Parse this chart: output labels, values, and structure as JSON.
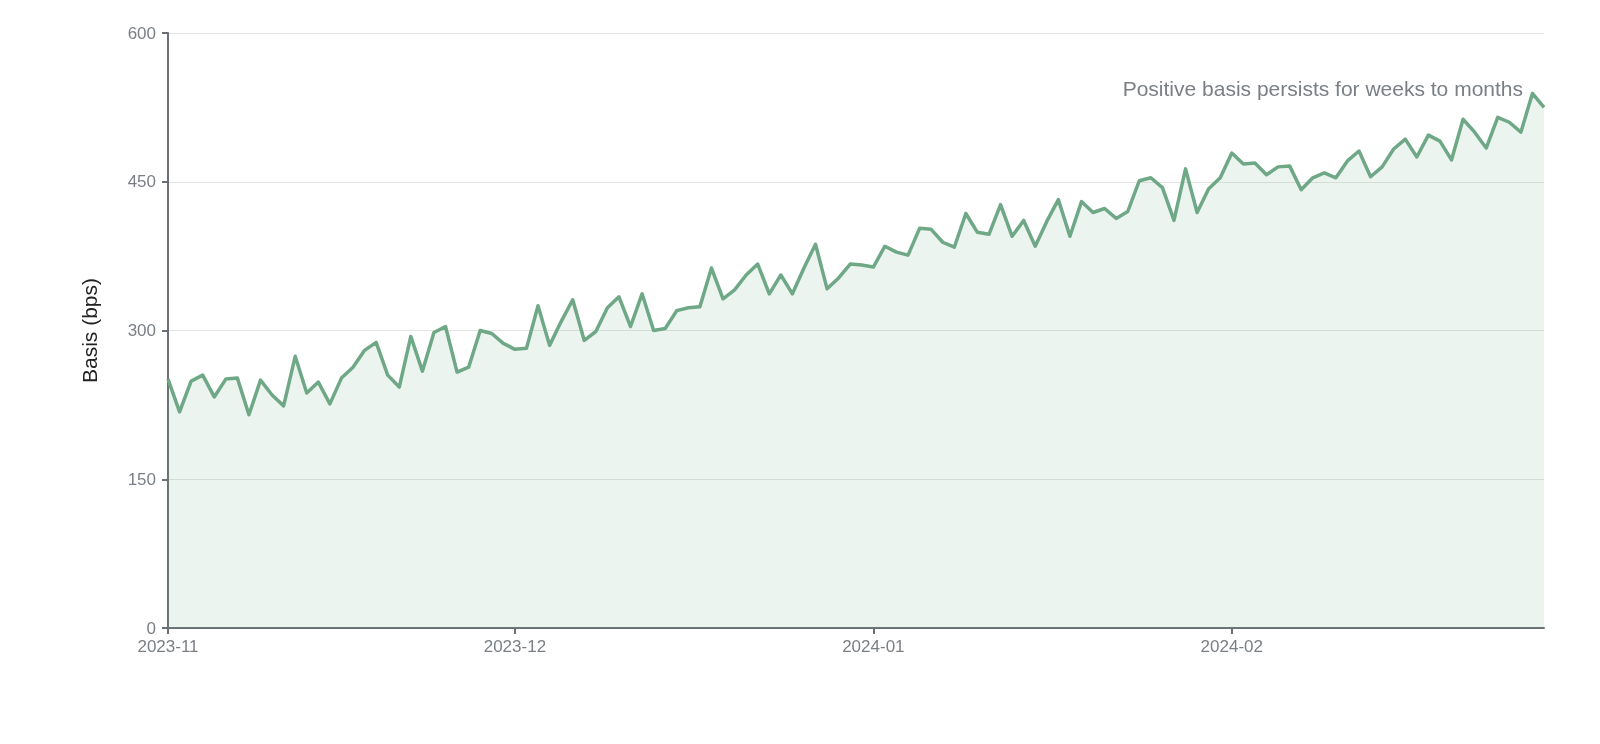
{
  "chart_data": {
    "type": "area",
    "ylabel": "Basis (bps)",
    "annotations": [
      "Positive basis persists for weeks to months"
    ],
    "x": [
      "2023-11-01",
      "2023-11-02",
      "2023-11-03",
      "2023-11-04",
      "2023-11-05",
      "2023-11-06",
      "2023-11-07",
      "2023-11-08",
      "2023-11-09",
      "2023-11-10",
      "2023-11-11",
      "2023-11-12",
      "2023-11-13",
      "2023-11-14",
      "2023-11-15",
      "2023-11-16",
      "2023-11-17",
      "2023-11-18",
      "2023-11-19",
      "2023-11-20",
      "2023-11-21",
      "2023-11-22",
      "2023-11-23",
      "2023-11-24",
      "2023-11-25",
      "2023-11-26",
      "2023-11-27",
      "2023-11-28",
      "2023-11-29",
      "2023-11-30",
      "2023-12-01",
      "2023-12-02",
      "2023-12-03",
      "2023-12-04",
      "2023-12-05",
      "2023-12-06",
      "2023-12-07",
      "2023-12-08",
      "2023-12-09",
      "2023-12-10",
      "2023-12-11",
      "2023-12-12",
      "2023-12-13",
      "2023-12-14",
      "2023-12-15",
      "2023-12-16",
      "2023-12-17",
      "2023-12-18",
      "2023-12-19",
      "2023-12-20",
      "2023-12-21",
      "2023-12-22",
      "2023-12-23",
      "2023-12-24",
      "2023-12-25",
      "2023-12-26",
      "2023-12-27",
      "2023-12-28",
      "2023-12-29",
      "2023-12-30",
      "2023-12-31",
      "2024-01-01",
      "2024-01-02",
      "2024-01-03",
      "2024-01-04",
      "2024-01-05",
      "2024-01-06",
      "2024-01-07",
      "2024-01-08",
      "2024-01-09",
      "2024-01-10",
      "2024-01-11",
      "2024-01-12",
      "2024-01-13",
      "2024-01-14",
      "2024-01-15",
      "2024-01-16",
      "2024-01-17",
      "2024-01-18",
      "2024-01-19",
      "2024-01-20",
      "2024-01-21",
      "2024-01-22",
      "2024-01-23",
      "2024-01-24",
      "2024-01-25",
      "2024-01-26",
      "2024-01-27",
      "2024-01-28",
      "2024-01-29",
      "2024-01-30",
      "2024-01-31",
      "2024-02-01",
      "2024-02-02",
      "2024-02-03",
      "2024-02-04",
      "2024-02-05",
      "2024-02-06",
      "2024-02-07",
      "2024-02-08",
      "2024-02-09",
      "2024-02-10",
      "2024-02-11",
      "2024-02-12",
      "2024-02-13",
      "2024-02-14",
      "2024-02-15",
      "2024-02-16",
      "2024-02-17",
      "2024-02-18",
      "2024-02-19",
      "2024-02-20",
      "2024-02-21",
      "2024-02-22",
      "2024-02-23",
      "2024-02-24",
      "2024-02-25",
      "2024-02-26",
      "2024-02-27",
      "2024-02-28"
    ],
    "series": [
      {
        "color": "#6fa886",
        "values": [
          251,
          218,
          249,
          255,
          233,
          251,
          252,
          215,
          250,
          235,
          224,
          274,
          237,
          248,
          226,
          252,
          263,
          280,
          288,
          255,
          243,
          294,
          259,
          298,
          304,
          258,
          263,
          300,
          297,
          287,
          281,
          282,
          325,
          285,
          309,
          331,
          290,
          299,
          323,
          334,
          304,
          337,
          300,
          302,
          320,
          323,
          324,
          363,
          332,
          341,
          356,
          367,
          337,
          356,
          337,
          363,
          387,
          342,
          353,
          367,
          366,
          364,
          385,
          379,
          376,
          403,
          402,
          389,
          384,
          418,
          399,
          397,
          427,
          395,
          411,
          385,
          410,
          432,
          395,
          430,
          419,
          423,
          413,
          420,
          451,
          454,
          444,
          411,
          463,
          419,
          443,
          454,
          479,
          468,
          469,
          457,
          465,
          466,
          442,
          454,
          459,
          454,
          471,
          481,
          455,
          465,
          483,
          493,
          475,
          497,
          491,
          472,
          513,
          500,
          484,
          515,
          510,
          500,
          539,
          525
        ]
      }
    ],
    "xlim": [
      "2023-11-01",
      "2024-02-28"
    ],
    "xticks": [
      "2023-11",
      "2023-12",
      "2024-01",
      "2024-02"
    ],
    "ylim": [
      0,
      600
    ],
    "yticks": [
      0,
      150,
      300,
      450,
      600
    ],
    "grid": "y",
    "marker": "none",
    "line_style": "solid"
  }
}
